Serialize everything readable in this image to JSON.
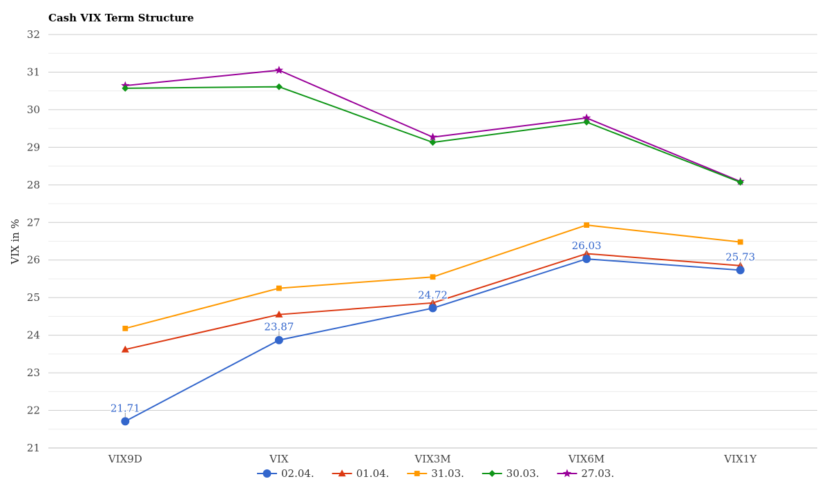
{
  "chart_data": {
    "type": "line",
    "title": "Cash VIX Term Structure",
    "xlabel": "",
    "ylabel": "VIX in %",
    "categories": [
      "VIX9D",
      "VIX",
      "VIX3M",
      "VIX6M",
      "VIX1Y"
    ],
    "ylim": [
      21,
      32
    ],
    "yticks": [
      21,
      22,
      23,
      24,
      25,
      26,
      27,
      28,
      29,
      30,
      31,
      32
    ],
    "grid": true,
    "legend_position": "bottom",
    "series": [
      {
        "name": "02.04.",
        "color": "#3366cc",
        "marker": "circle",
        "values": [
          21.71,
          23.87,
          24.72,
          26.03,
          25.73
        ],
        "labeled": true
      },
      {
        "name": "01.04.",
        "color": "#dc3912",
        "marker": "triangle",
        "values": [
          23.62,
          24.55,
          24.86,
          26.17,
          25.85
        ],
        "labeled": false
      },
      {
        "name": "31.03.",
        "color": "#ff9900",
        "marker": "square",
        "values": [
          24.18,
          25.25,
          25.55,
          26.93,
          26.48
        ],
        "labeled": false
      },
      {
        "name": "30.03.",
        "color": "#109618",
        "marker": "diamond",
        "values": [
          30.57,
          30.61,
          29.13,
          29.67,
          28.07
        ],
        "labeled": false
      },
      {
        "name": "27.03.",
        "color": "#990099",
        "marker": "star",
        "values": [
          30.64,
          31.05,
          29.27,
          29.78,
          28.09
        ],
        "labeled": false
      }
    ]
  }
}
